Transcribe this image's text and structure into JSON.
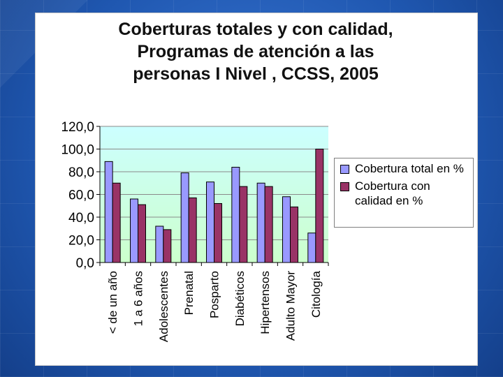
{
  "title_lines": [
    "Coberturas totales y con calidad,",
    "Programas de atención a las",
    "personas I Nivel , CCSS, 2005"
  ],
  "chart_data": {
    "type": "bar",
    "categories": [
      "< de un año",
      "1 a 6 años",
      "Adolescentes",
      "Prenatal",
      "Posparto",
      "Diabéticos",
      "Hipertensos",
      "Adulto Mayor",
      "Citología"
    ],
    "series": [
      {
        "name": "Cobertura total en %",
        "values": [
          89,
          56,
          32,
          79,
          71,
          84,
          70,
          58,
          26
        ],
        "color": "#9999ff"
      },
      {
        "name": "Cobertura con calidad en %",
        "values": [
          70,
          51,
          29,
          57,
          52,
          67,
          67,
          49,
          100
        ],
        "color": "#993366"
      }
    ],
    "y_ticks": [
      "0,0",
      "20,0",
      "40,0",
      "60,0",
      "80,0",
      "100,0",
      "120,0"
    ],
    "ylim": [
      0,
      120
    ],
    "grid": true,
    "legend_position": "right",
    "plot_background": [
      "#ccffff",
      "#ccffcc"
    ]
  },
  "legend": {
    "items": [
      {
        "label": "Cobertura total en %",
        "color": "#9999ff"
      },
      {
        "label": "Cobertura con calidad en %",
        "color": "#993366"
      }
    ]
  }
}
